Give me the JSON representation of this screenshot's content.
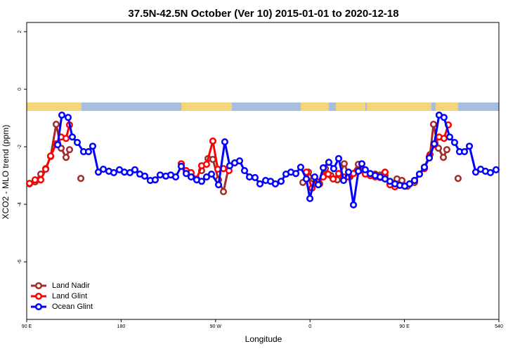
{
  "chart_data": {
    "type": "line",
    "title": "37.5N-42.5N October (Ver 10)   2015-01-01 to 2020-12-18",
    "x_label": "Longitude",
    "y_label": "XCO2 - MLO trend (ppm)",
    "xlim": [
      90,
      540
    ],
    "ylim": [
      -8,
      2.32
    ],
    "xticks": [
      {
        "value": 90,
        "label": "90 E"
      },
      180,
      {
        "value": 270,
        "label": "90 W"
      },
      {
        "value": 360,
        "label": "0"
      },
      {
        "value": 450,
        "label": "90 E"
      },
      540
    ],
    "yticks": [
      2,
      0,
      -2,
      -4,
      -6
    ],
    "legend": "bottom-left",
    "series": [
      {
        "name": "Land Nadir",
        "color": "#a52a2a",
        "x": [
          92.7,
          98,
          103.4,
          108.1,
          112.8,
          118.1,
          122.8,
          127.5,
          130.8,
          null,
          141.6,
          null,
          256.7,
          262.8,
          267.4,
          272.8,
          277.5,
          282.2,
          null,
          353.2,
          358.5,
          363.2,
          369.2,
          374.6,
          379.9,
          386,
          392.6,
          398,
          406.1,
          412.7,
          417.4,
          422.1,
          426.8,
          431.5,
          436.2,
          442.9,
          447.6,
          452.9,
          459.6,
          464.3,
          469,
          474.4,
          477.7,
          482.4,
          487.1,
          490.4,
          null,
          501.1
        ],
        "values": [
          -3.29,
          -3.22,
          -2.95,
          -2.76,
          -2.34,
          -1.22,
          -2.05,
          -2.37,
          -2.1,
          null,
          -3.1,
          null,
          -2.83,
          -2.41,
          -2.44,
          -3.15,
          -3.56,
          -2.76,
          null,
          -3.24,
          -2.88,
          -3.12,
          -3.29,
          -2.76,
          -3,
          -3.15,
          -2.59,
          -3.05,
          -2.61,
          -2.88,
          -2.95,
          -2.95,
          -2.98,
          -3,
          -3.29,
          -3.12,
          -3.17,
          -3.37,
          -3.24,
          -2.95,
          -2.71,
          -2.27,
          -1.22,
          -2.05,
          -2.37,
          -2.1,
          null,
          -3.1
        ]
      },
      {
        "name": "Land Glint",
        "color": "#ff0000",
        "x": [
          92.7,
          98,
          103.4,
          108.1,
          112.8,
          118.1,
          122.8,
          127.5,
          130.8,
          null,
          237.3,
          242,
          246.7,
          252,
          256.7,
          261.4,
          267.4,
          272.1,
          277.5,
          282.8,
          null,
          356.5,
          361.9,
          367.2,
          372.6,
          377.3,
          382,
          387.3,
          392,
          396.7,
          401.4,
          406.1,
          412.7,
          417.4,
          422.1,
          426.8,
          431.5,
          436.2,
          440.9,
          445.6,
          450.3,
          454.9,
          459.6,
          464.3,
          469,
          473.7,
          478.4,
          483,
          487.7,
          491.8
        ],
        "values": [
          -3.27,
          -3.15,
          -3.15,
          -2.78,
          -2.32,
          -1.9,
          -1.66,
          -1.71,
          -1.24,
          null,
          -2.59,
          -2.83,
          -2.9,
          -3.12,
          -2.66,
          -2.61,
          -1.8,
          -2.78,
          -2.76,
          -2.83,
          null,
          -2.88,
          -3.44,
          -3.22,
          -3.05,
          -2.95,
          -3.12,
          -2.93,
          -3.05,
          -3.05,
          -2.93,
          -2.85,
          -2.95,
          -3,
          -3.05,
          -3.07,
          -2.88,
          -3.32,
          -3.39,
          -3.34,
          -3.37,
          -3.29,
          -3.17,
          -2.95,
          -2.76,
          -2.34,
          -1.93,
          -1.66,
          -1.71,
          -1.24
        ]
      },
      {
        "name": "Ocean Glint",
        "color": "#0000ff",
        "x": [
          119.5,
          123.5,
          129.5,
          133.5,
          138.2,
          144.2,
          148.9,
          152.9,
          158.3,
          163,
          168.3,
          173,
          178.4,
          183.1,
          188.4,
          193.1,
          197.8,
          202.5,
          207.8,
          212.5,
          217.2,
          222.6,
          227.3,
          232,
          237.3,
          242,
          246.7,
          252,
          256.7,
          261.4,
          266.1,
          272.8,
          278.8,
          283.5,
          288.2,
          292.9,
          297.6,
          302.3,
          307.6,
          312.3,
          317.7,
          322.4,
          327,
          332.4,
          337.1,
          341.8,
          346.5,
          351.1,
          356.5,
          359.9,
          364.5,
          367.9,
          372.6,
          377.9,
          382.6,
          387.3,
          392,
          396.7,
          401.4,
          406.1,
          409.4,
          412.7,
          417.4,
          422.1,
          426.8,
          431.5,
          436.2,
          440.9,
          445.6,
          450.3,
          454.9,
          459.6,
          464.3,
          469,
          473.7,
          478.4,
          483,
          487.7,
          493.1,
          497.8,
          502.5,
          507.2,
          511.9,
          517.9,
          522.6,
          527.2,
          531.9,
          537.3
        ],
        "values": [
          -1.93,
          -0.9,
          -0.98,
          -1.66,
          -1.85,
          -2.17,
          -2.17,
          -1.98,
          -2.88,
          -2.78,
          -2.85,
          -2.9,
          -2.8,
          -2.88,
          -2.9,
          -2.8,
          -2.95,
          -3.02,
          -3.17,
          -3.15,
          -2.98,
          -3.02,
          -2.98,
          -3.05,
          -2.68,
          -2.93,
          -3.05,
          -3.15,
          -3.2,
          -3.05,
          -2.95,
          -3.32,
          -1.83,
          -2.66,
          -2.56,
          -2.49,
          -2.83,
          -3.05,
          -3.07,
          -3.29,
          -3.17,
          -3.2,
          -3.29,
          -3.2,
          -2.95,
          -2.88,
          -2.93,
          -2.71,
          -3.12,
          -3.8,
          -3.05,
          -3.32,
          -2.73,
          -2.54,
          -2.76,
          -2.41,
          -3.17,
          -2.88,
          -4.02,
          -2.85,
          -2.59,
          -2.8,
          -2.93,
          -3,
          -3.05,
          -3.12,
          -3.2,
          -3.29,
          -3.34,
          -3.37,
          -3.29,
          -3.17,
          -2.95,
          -2.71,
          -2.39,
          -1.9,
          -0.9,
          -0.98,
          -1.66,
          -1.85,
          -2.17,
          -2.17,
          -1.98,
          -2.88,
          -2.78,
          -2.85,
          -2.9,
          -2.8
        ]
      }
    ]
  }
}
